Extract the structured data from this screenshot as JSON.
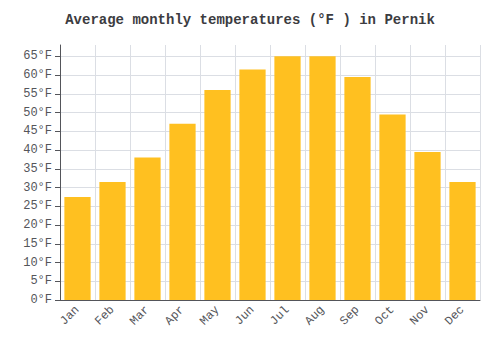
{
  "chart_data": {
    "type": "bar",
    "title": "Average monthly temperatures (°F ) in Pernik",
    "categories": [
      "Jan",
      "Feb",
      "Mar",
      "Apr",
      "May",
      "Jun",
      "Jul",
      "Aug",
      "Sep",
      "Oct",
      "Nov",
      "Dec"
    ],
    "values": [
      27.5,
      31.5,
      38,
      47,
      56,
      61.5,
      65,
      65,
      59.5,
      49.5,
      39.5,
      31.5
    ],
    "color": "#FFC020",
    "ylim": [
      0,
      68
    ],
    "yticks": [
      {
        "value": 0,
        "label": "0°F"
      },
      {
        "value": 5,
        "label": "5°F"
      },
      {
        "value": 10,
        "label": "10°F"
      },
      {
        "value": 15,
        "label": "15°F"
      },
      {
        "value": 20,
        "label": "20°F"
      },
      {
        "value": 25,
        "label": "25°F"
      },
      {
        "value": 30,
        "label": "30°F"
      },
      {
        "value": 35,
        "label": "35°F"
      },
      {
        "value": 40,
        "label": "40°F"
      },
      {
        "value": 45,
        "label": "45°F"
      },
      {
        "value": 50,
        "label": "50°F"
      },
      {
        "value": 55,
        "label": "55°F"
      },
      {
        "value": 60,
        "label": "60°F"
      },
      {
        "value": 65,
        "label": "65°F"
      }
    ],
    "grid": true
  }
}
